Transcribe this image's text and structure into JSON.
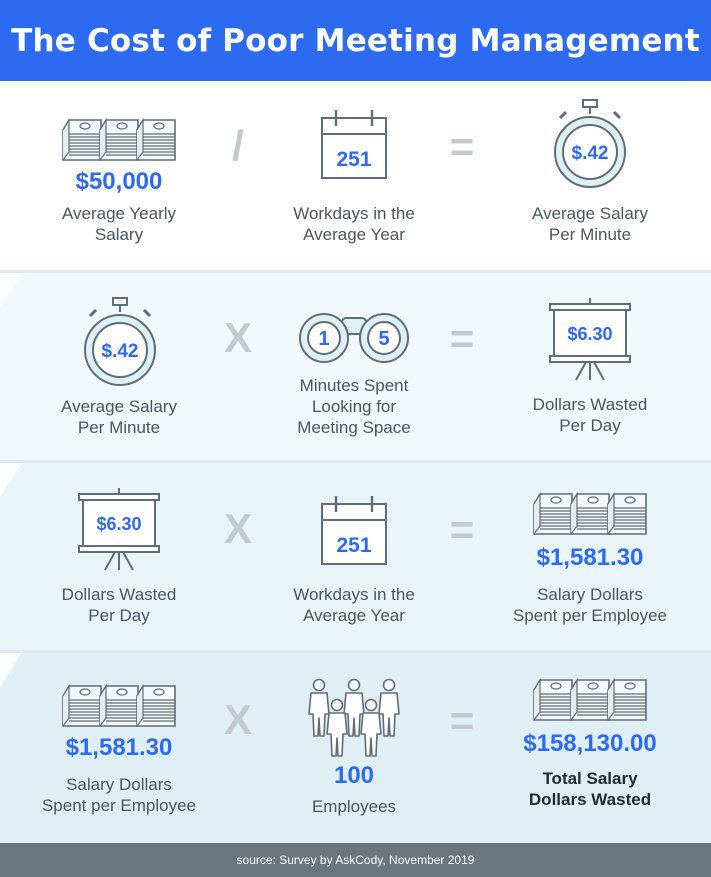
{
  "title": "The Cost of Poor Meeting Management",
  "source": "source: Survey by AskCody, November 2019",
  "colors": {
    "accent": "#2c6af0",
    "icon_line": "#5f6d78",
    "icon_fill": "#dff0f7"
  },
  "rows": [
    {
      "items": [
        {
          "icon": "money-stack-icon",
          "value": "$50,000",
          "label_1": "Average Yearly",
          "label_2": "Salary"
        },
        {
          "icon": "calendar-icon",
          "icon_value": "251",
          "label_1": "Workdays in the",
          "label_2": "Average Year"
        },
        {
          "icon": "stopwatch-icon",
          "icon_value": "$.42",
          "label_1": "Average Salary",
          "label_2": "Per Minute"
        }
      ],
      "ops": [
        "/",
        "="
      ]
    },
    {
      "items": [
        {
          "icon": "stopwatch-icon",
          "icon_value": "$.42",
          "label_1": "Average Salary",
          "label_2": "Per Minute"
        },
        {
          "icon": "binoculars-icon",
          "icon_value_1": "1",
          "icon_value_2": "5",
          "label_1": "Minutes Spent",
          "label_2": "Looking for",
          "label_3": "Meeting Space"
        },
        {
          "icon": "presentation-board-icon",
          "icon_value": "$6.30",
          "label_1": "Dollars Wasted",
          "label_2": "Per Day"
        }
      ],
      "ops": [
        "X",
        "="
      ]
    },
    {
      "items": [
        {
          "icon": "presentation-board-icon",
          "icon_value": "$6.30",
          "label_1": "Dollars Wasted",
          "label_2": "Per Day"
        },
        {
          "icon": "calendar-icon",
          "icon_value": "251",
          "label_1": "Workdays in the",
          "label_2": "Average Year"
        },
        {
          "icon": "money-stack-icon",
          "value": "$1,581.30",
          "label_1": "Salary Dollars",
          "label_2": "Spent per Employee"
        }
      ],
      "ops": [
        "X",
        "="
      ]
    },
    {
      "items": [
        {
          "icon": "money-stack-icon",
          "value": "$1,581.30",
          "label_1": "Salary Dollars",
          "label_2": "Spent per Employee"
        },
        {
          "icon": "people-group-icon",
          "value": "100",
          "label_1": "Employees"
        },
        {
          "icon": "money-stack-icon",
          "value": "$158,130.00",
          "label_1": "Total Salary",
          "label_2": "Dollars Wasted"
        }
      ],
      "ops": [
        "X",
        "="
      ]
    }
  ]
}
